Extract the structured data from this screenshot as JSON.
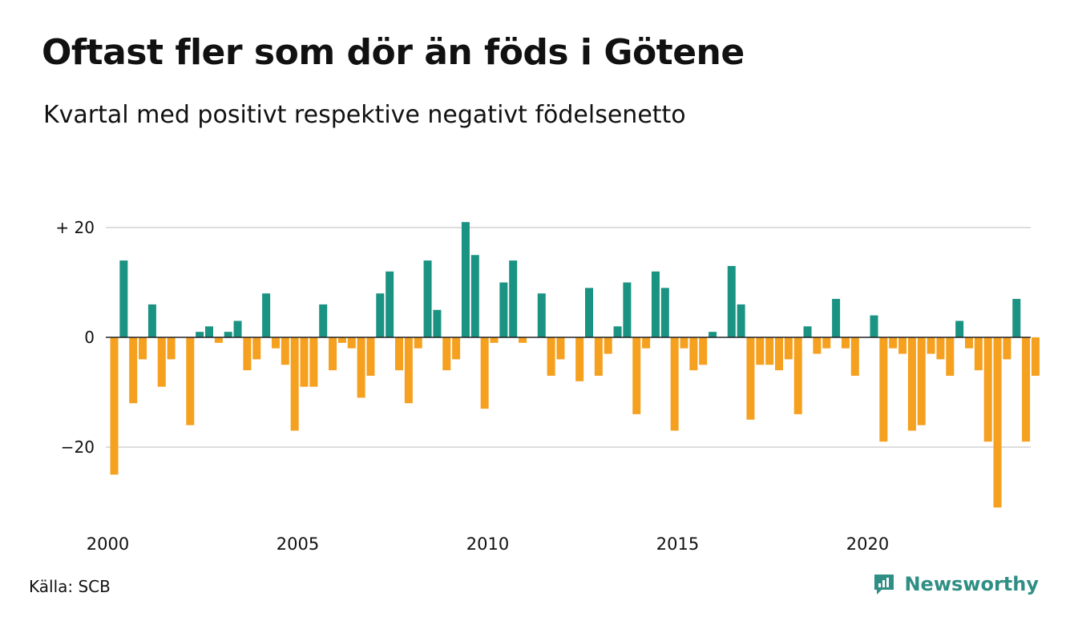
{
  "title": "Oftast fler som dör än föds i Götene",
  "subtitle": "Kvartal med positivt respektive negativt födelsenetto",
  "source": "Källa: SCB",
  "brand": {
    "name": "Newsworthy",
    "icon": "newsworthy-logo-icon"
  },
  "colors": {
    "positive": "#1a9383",
    "negative": "#f5a01f",
    "grid": "#dddddd",
    "zero_line": "#222222"
  },
  "chart_data": {
    "type": "bar",
    "title": "Oftast fler som dör än föds i Götene",
    "subtitle": "Kvartal med positivt respektive negativt födelsenetto",
    "xlabel": "",
    "ylabel": "",
    "start": "2000 Q1",
    "frequency": "quarterly",
    "x_ticks": [
      "2000",
      "2005",
      "2010",
      "2015",
      "2020"
    ],
    "y_ticks": [
      {
        "value": 20,
        "label": "+ 20"
      },
      {
        "value": 0,
        "label": "0"
      },
      {
        "value": -20,
        "label": "−20"
      }
    ],
    "ylim": [
      -32,
      22
    ],
    "grid": true,
    "values": [
      -25,
      14,
      -12,
      -4,
      6,
      -9,
      -4,
      0,
      -16,
      1,
      2,
      -1,
      1,
      3,
      -6,
      -4,
      8,
      -2,
      -5,
      -17,
      -9,
      -9,
      6,
      -6,
      -1,
      -2,
      -11,
      -7,
      8,
      12,
      -6,
      -12,
      -2,
      14,
      5,
      -6,
      -4,
      21,
      15,
      -13,
      -1,
      10,
      14,
      -1,
      0,
      8,
      -7,
      -4,
      0,
      -8,
      9,
      -7,
      -3,
      2,
      10,
      -14,
      -2,
      12,
      9,
      -17,
      -2,
      -6,
      -5,
      1,
      0,
      13,
      6,
      -15,
      -5,
      -5,
      -6,
      -4,
      -14,
      2,
      -3,
      -2,
      7,
      -2,
      -7,
      0,
      4,
      -19,
      -2,
      -3,
      -17,
      -16,
      -3,
      -4,
      -7,
      3,
      -2,
      -6,
      -19,
      -31,
      -4,
      7,
      -19,
      -7
    ]
  }
}
